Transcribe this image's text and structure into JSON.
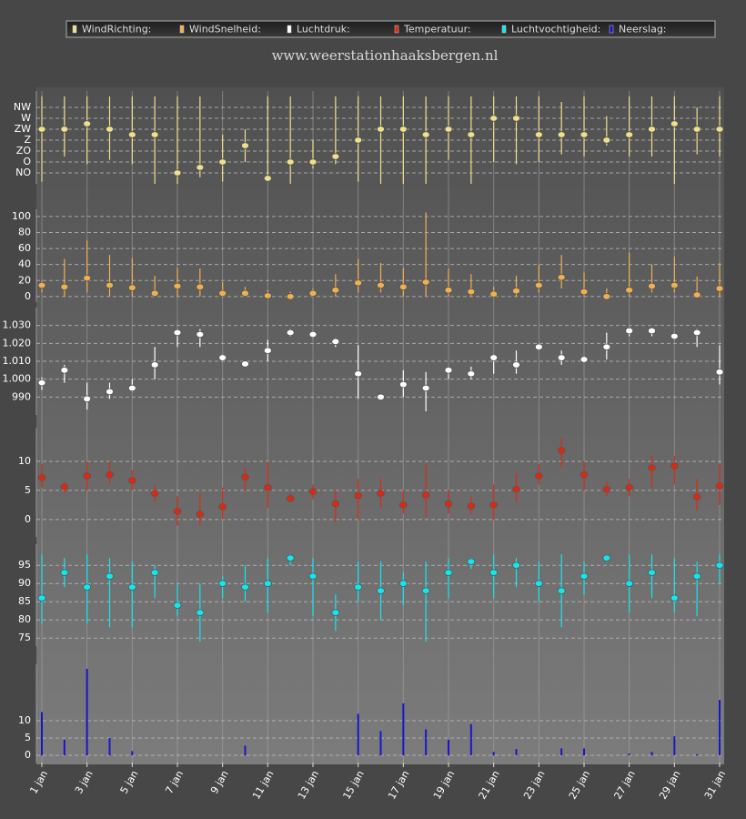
{
  "chart_data": {
    "type": "multi-panel",
    "title": "www.weerstationhaaksbergen.nl",
    "categories": [
      "1 jan",
      null,
      "3 jan",
      null,
      "5 jan",
      null,
      "7 jan",
      null,
      "9 jan",
      null,
      "11 jan",
      null,
      "13 jan",
      null,
      "15 jan",
      null,
      "17 jan",
      null,
      "19 jan",
      null,
      "21 jan",
      null,
      "23 jan",
      null,
      "25 jan",
      null,
      "27 jan",
      null,
      "29 jan",
      null,
      "31 jan"
    ],
    "grid": true,
    "panels": [
      {
        "type": "range",
        "name": "WindRichting:",
        "color": "#f0e08c",
        "values": [
          4,
          4,
          4.5,
          4,
          3.5,
          3.5,
          0,
          0.5,
          1,
          2.5,
          -0.5,
          1,
          1,
          1.5,
          3,
          4,
          4,
          3.5,
          4,
          3.5,
          5,
          5,
          3.5,
          3.5,
          3.5,
          3,
          3.5,
          4,
          4.5,
          4,
          4
        ],
        "high": [
          7,
          7,
          7,
          7,
          7,
          7,
          7,
          7,
          3.5,
          4,
          7,
          7,
          3,
          7,
          7,
          7,
          7,
          7,
          7,
          7,
          7,
          7,
          7,
          6.5,
          7,
          5.2,
          7,
          7,
          7,
          6,
          7
        ],
        "low": [
          -0.8,
          1.5,
          0.8,
          1.2,
          0.8,
          -1,
          -1,
          -0.4,
          -0.8,
          1,
          -0.8,
          -1,
          0.4,
          0.8,
          -0.8,
          -1,
          -1,
          -1,
          1.2,
          -1,
          1,
          0.8,
          1,
          1.7,
          1.5,
          2.5,
          1.5,
          1.5,
          -1,
          1.7,
          1.5
        ],
        "ylim": [
          -1,
          7.5
        ],
        "yticks": [
          {
            "value": 0,
            "label": "NO"
          },
          {
            "value": 1,
            "label": "O"
          },
          {
            "value": 2,
            "label": "ZO"
          },
          {
            "value": 3,
            "label": "Z"
          },
          {
            "value": 4,
            "label": "ZW"
          },
          {
            "value": 5,
            "label": "W"
          },
          {
            "value": 6,
            "label": "NW"
          }
        ]
      },
      {
        "type": "range",
        "name": "WindSnelheid:",
        "color": "#f0b050",
        "values": [
          14,
          12,
          23,
          14,
          11,
          4,
          13,
          12,
          4,
          4,
          1,
          0,
          4,
          8,
          17,
          14,
          12,
          18,
          8,
          6,
          3,
          7,
          14,
          24,
          6,
          0,
          8,
          13,
          14,
          2,
          10
        ],
        "high": [
          20,
          47,
          70,
          52,
          48,
          26,
          36,
          35,
          18,
          12,
          8,
          6,
          10,
          28,
          47,
          42,
          36,
          105,
          35,
          28,
          12,
          26,
          40,
          52,
          30,
          10,
          55,
          40,
          50,
          25,
          42
        ],
        "low": [
          5,
          0,
          5,
          0,
          0,
          0,
          0,
          0,
          0,
          0,
          0,
          0,
          0,
          0,
          5,
          5,
          0,
          0,
          0,
          0,
          0,
          0,
          5,
          10,
          0,
          0,
          0,
          5,
          5,
          0,
          0
        ],
        "ylim": [
          -7,
          109
        ],
        "yticks": [
          0,
          20,
          40,
          60,
          80,
          100
        ]
      },
      {
        "type": "range",
        "name": "Luchtdruk:",
        "color": "#ffffff",
        "values": [
          998,
          1005,
          989,
          993,
          995,
          1008,
          1026,
          1025,
          1012,
          1008.5,
          1016,
          1026,
          1025,
          1021,
          1003,
          990,
          997,
          995,
          1005,
          1003,
          1012,
          1008,
          1018,
          1012,
          1011,
          1018,
          1027,
          1027,
          1024,
          1026,
          1004
        ],
        "high": [
          1001,
          1008,
          998,
          998,
          1000,
          1018,
          1028,
          1028,
          1014,
          1010,
          1022,
          1028,
          1027,
          1023,
          1019,
          991,
          1005,
          1004,
          1007,
          1007,
          1014,
          1016,
          1020,
          1016,
          1013,
          1026,
          1029,
          1028,
          1026,
          1028,
          1019
        ],
        "low": [
          994,
          998,
          983,
          989,
          993,
          1000,
          1018,
          1018,
          1010,
          1007,
          1010,
          1024,
          1023,
          1018,
          989,
          989,
          990,
          982,
          1000,
          1000,
          1003,
          1003,
          1016,
          1008,
          1009,
          1011,
          1024,
          1024,
          1022,
          1018,
          997
        ],
        "ylim": [
          980,
          1040
        ],
        "yticks": [
          990,
          {
            "value": 1000,
            "label": "1.000"
          },
          {
            "value": 1010,
            "label": "1.010"
          },
          {
            "value": 1020,
            "label": "1.020"
          },
          {
            "value": 1030,
            "label": "1.030"
          }
        ]
      },
      {
        "type": "range",
        "name": "Temperatuur:",
        "color": "#e02810",
        "values": [
          7.2,
          5.6,
          7.5,
          7.7,
          6.7,
          4.5,
          1.4,
          0.9,
          2.2,
          7.3,
          5.5,
          3.6,
          4.8,
          2.7,
          4.1,
          4.5,
          2.5,
          4.2,
          2.7,
          2.3,
          2.5,
          5.2,
          7.5,
          11.9,
          7.7,
          5.2,
          5.5,
          8.9,
          9.2,
          3.9,
          5.8
        ],
        "high": [
          9.5,
          6.5,
          10,
          10,
          8.5,
          6,
          4,
          4.5,
          5.5,
          9,
          10,
          4.5,
          6,
          5,
          7,
          7,
          5,
          9.5,
          5,
          4,
          6,
          8,
          9.5,
          14,
          10,
          6.5,
          7,
          11,
          11,
          7,
          9.5
        ],
        "low": [
          5.5,
          4.5,
          5,
          6,
          5,
          3,
          -1,
          -1,
          0,
          5,
          2,
          3,
          3.5,
          -0.5,
          0,
          2,
          1,
          0.5,
          1,
          1,
          0,
          3,
          6,
          9,
          5,
          4,
          4,
          5.5,
          6,
          1.5,
          2.5
        ],
        "ylim": [
          -3,
          15.8
        ],
        "yticks": [
          0,
          5,
          10
        ]
      },
      {
        "type": "range",
        "name": "Luchtvochtigheid:",
        "color": "#10e8f0",
        "values": [
          86,
          93,
          89,
          92,
          89,
          93,
          84,
          82,
          90,
          89,
          90,
          97,
          92,
          82,
          89,
          88,
          90,
          88,
          93,
          96,
          93,
          95,
          90,
          88,
          92,
          97,
          90,
          93,
          86,
          92,
          95
        ],
        "high": [
          98,
          97,
          98,
          97,
          96,
          95,
          90,
          90,
          92,
          95,
          97,
          98,
          97,
          87,
          96,
          96,
          93,
          96,
          97,
          97,
          98,
          97,
          96,
          98,
          96,
          98,
          98,
          98,
          97,
          96,
          98
        ],
        "low": [
          79,
          89,
          79,
          78,
          78,
          86,
          81,
          74,
          86,
          85,
          82,
          95,
          81,
          77,
          85,
          80,
          84,
          74,
          86,
          94,
          86,
          89,
          85,
          78,
          87,
          96,
          82,
          86,
          82,
          81,
          90
        ],
        "ylim": [
          72.8,
          100.8
        ],
        "yticks": [
          75,
          80,
          85,
          90,
          95
        ]
      },
      {
        "type": "bar",
        "name": "Neerslag:",
        "color": "#1818c8",
        "values": [
          12.5,
          4.5,
          25,
          5,
          1.2,
          0,
          0,
          0,
          0,
          2.8,
          0,
          0,
          0,
          0,
          12,
          7,
          15,
          7.5,
          4.5,
          9,
          1,
          1.8,
          0,
          2,
          2,
          0,
          0.5,
          1,
          5.5,
          0.3,
          16
        ],
        "ylim": [
          -2.1,
          26.3
        ],
        "yticks": [
          0,
          5,
          10
        ]
      }
    ]
  }
}
